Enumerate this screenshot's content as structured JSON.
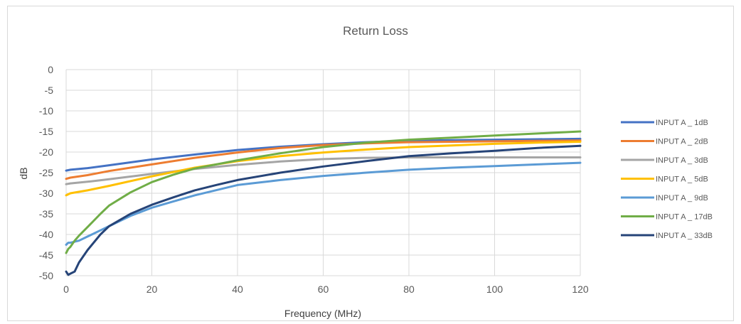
{
  "chart_data": {
    "type": "line",
    "title": "Return Loss",
    "xlabel": "Frequency (MHz)",
    "ylabel": "dB",
    "xlim": [
      0,
      120
    ],
    "ylim": [
      -50,
      0
    ],
    "x_ticks": [
      0,
      20,
      40,
      60,
      80,
      100,
      120
    ],
    "y_ticks": [
      0,
      -5,
      -10,
      -15,
      -20,
      -25,
      -30,
      -35,
      -40,
      -45,
      -50
    ],
    "grid": true,
    "legend_position": "right",
    "series": [
      {
        "name": "INPUT A _ 1dB",
        "color": "#4472c4",
        "x": [
          0,
          1,
          5,
          10,
          20,
          30,
          40,
          50,
          60,
          70,
          80,
          90,
          100,
          110,
          120
        ],
        "y": [
          -24.5,
          -24.3,
          -23.9,
          -23.2,
          -21.8,
          -20.6,
          -19.5,
          -18.7,
          -18.1,
          -17.6,
          -17.3,
          -17.1,
          -17.0,
          -16.9,
          -16.8
        ]
      },
      {
        "name": "INPUT A _ 2dB",
        "color": "#ed7d31",
        "x": [
          0,
          1,
          5,
          10,
          20,
          30,
          40,
          50,
          60,
          70,
          80,
          90,
          100,
          110,
          120
        ],
        "y": [
          -26.5,
          -26.2,
          -25.6,
          -24.6,
          -23.0,
          -21.4,
          -20.1,
          -19.0,
          -18.3,
          -17.9,
          -17.6,
          -17.5,
          -17.4,
          -17.3,
          -17.2
        ]
      },
      {
        "name": "INPUT A _ 3dB",
        "color": "#a5a5a5",
        "x": [
          0,
          1,
          5,
          10,
          20,
          30,
          40,
          50,
          60,
          70,
          80,
          90,
          100,
          110,
          120
        ],
        "y": [
          -27.8,
          -27.6,
          -27.2,
          -26.6,
          -25.3,
          -24.1,
          -23.1,
          -22.3,
          -21.7,
          -21.4,
          -21.3,
          -21.3,
          -21.3,
          -21.3,
          -21.3
        ]
      },
      {
        "name": "INPUT A _ 5dB",
        "color": "#ffc000",
        "x": [
          0,
          1,
          5,
          10,
          20,
          30,
          40,
          50,
          60,
          70,
          80,
          90,
          100,
          110,
          120
        ],
        "y": [
          -30.5,
          -30.0,
          -29.3,
          -28.2,
          -25.9,
          -23.8,
          -22.2,
          -21.0,
          -20.1,
          -19.4,
          -18.8,
          -18.4,
          -18.0,
          -17.7,
          -17.5
        ]
      },
      {
        "name": "INPUT A _ 9dB",
        "color": "#5b9bd5",
        "x": [
          0,
          0.5,
          1,
          3,
          5,
          8,
          10,
          15,
          20,
          25,
          30,
          40,
          50,
          60,
          70,
          80,
          90,
          100,
          110,
          120
        ],
        "y": [
          -42.5,
          -42.0,
          -42.0,
          -41.5,
          -40.5,
          -39.0,
          -38.0,
          -35.5,
          -33.5,
          -32.0,
          -30.5,
          -28.0,
          -26.8,
          -25.8,
          -25.0,
          -24.3,
          -23.8,
          -23.4,
          -23.0,
          -22.6
        ]
      },
      {
        "name": "INPUT A _ 17dB",
        "color": "#70ad47",
        "x": [
          0,
          0.5,
          1,
          2,
          3,
          5,
          8,
          10,
          15,
          20,
          25,
          30,
          40,
          50,
          60,
          70,
          80,
          90,
          100,
          110,
          120
        ],
        "y": [
          -44.5,
          -43.5,
          -43.0,
          -41.5,
          -40.3,
          -38.2,
          -35.0,
          -33.0,
          -29.8,
          -27.3,
          -25.5,
          -24.0,
          -22.0,
          -20.3,
          -18.8,
          -17.7,
          -17.0,
          -16.5,
          -16.0,
          -15.5,
          -15.0
        ]
      },
      {
        "name": "INPUT A _ 33dB",
        "color": "#264478",
        "x": [
          0,
          0.5,
          1,
          2,
          3,
          5,
          8,
          10,
          15,
          20,
          25,
          30,
          35,
          40,
          50,
          60,
          70,
          80,
          90,
          100,
          110,
          120
        ],
        "y": [
          -49.0,
          -49.8,
          -49.5,
          -49.0,
          -46.8,
          -43.8,
          -40.0,
          -38.0,
          -35.0,
          -32.8,
          -31.0,
          -29.3,
          -28.0,
          -26.8,
          -25.0,
          -23.5,
          -22.2,
          -21.0,
          -20.3,
          -19.7,
          -19.0,
          -18.5
        ]
      }
    ]
  }
}
